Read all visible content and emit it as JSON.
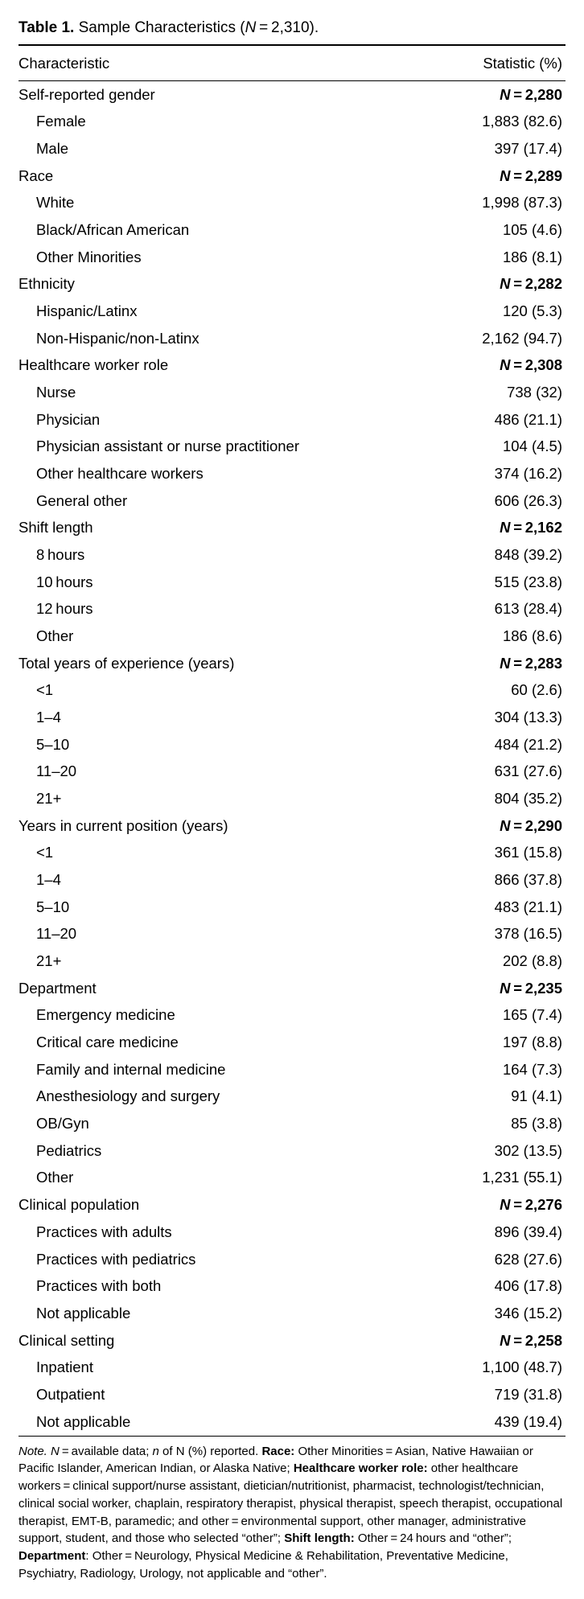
{
  "title_prefix": "Table 1.",
  "title_text": " Sample Characteristics (",
  "title_N": "N",
  "title_eq": " = 2,310).",
  "header_left": "Characteristic",
  "header_right": "Statistic (%)",
  "N_label": "N",
  "eq": " = ",
  "sections": [
    {
      "label": "Self-reported gender",
      "n": "2,280",
      "rows": [
        {
          "l": "Female",
          "v": "1,883 (82.6)"
        },
        {
          "l": "Male",
          "v": "397 (17.4)"
        }
      ]
    },
    {
      "label": "Race",
      "n": "2,289",
      "rows": [
        {
          "l": "White",
          "v": "1,998 (87.3)"
        },
        {
          "l": "Black/African American",
          "v": "105 (4.6)"
        },
        {
          "l": "Other Minorities",
          "v": "186 (8.1)"
        }
      ]
    },
    {
      "label": "Ethnicity",
      "n": "2,282",
      "rows": [
        {
          "l": "Hispanic/Latinx",
          "v": "120 (5.3)"
        },
        {
          "l": "Non-Hispanic/non-Latinx",
          "v": "2,162 (94.7)"
        }
      ]
    },
    {
      "label": "Healthcare worker role",
      "n": "2,308",
      "rows": [
        {
          "l": "Nurse",
          "v": "738 (32)"
        },
        {
          "l": "Physician",
          "v": "486 (21.1)"
        },
        {
          "l": "Physician assistant or nurse practitioner",
          "v": "104 (4.5)"
        },
        {
          "l": "Other healthcare workers",
          "v": "374 (16.2)"
        },
        {
          "l": "General other",
          "v": "606 (26.3)"
        }
      ]
    },
    {
      "label": "Shift length",
      "n": "2,162",
      "rows": [
        {
          "l": "8 hours",
          "v": "848 (39.2)"
        },
        {
          "l": "10 hours",
          "v": "515 (23.8)"
        },
        {
          "l": "12 hours",
          "v": "613 (28.4)"
        },
        {
          "l": "Other",
          "v": "186 (8.6)"
        }
      ]
    },
    {
      "label": "Total years of experience (years)",
      "n": "2,283",
      "rows": [
        {
          "l": "<1",
          "v": "60 (2.6)"
        },
        {
          "l": "1–4",
          "v": "304 (13.3)"
        },
        {
          "l": "5–10",
          "v": "484 (21.2)"
        },
        {
          "l": "11–20",
          "v": "631 (27.6)"
        },
        {
          "l": "21+",
          "v": "804 (35.2)"
        }
      ]
    },
    {
      "label": "Years in current position (years)",
      "n": "2,290",
      "rows": [
        {
          "l": "<1",
          "v": "361 (15.8)"
        },
        {
          "l": "1–4",
          "v": "866 (37.8)"
        },
        {
          "l": "5–10",
          "v": "483 (21.1)"
        },
        {
          "l": "11–20",
          "v": "378 (16.5)"
        },
        {
          "l": "21+",
          "v": "202 (8.8)"
        }
      ]
    },
    {
      "label": "Department",
      "n": "2,235",
      "rows": [
        {
          "l": "Emergency medicine",
          "v": "165 (7.4)"
        },
        {
          "l": "Critical care medicine",
          "v": "197 (8.8)"
        },
        {
          "l": "Family and internal medicine",
          "v": "164 (7.3)"
        },
        {
          "l": "Anesthesiology and surgery",
          "v": "91 (4.1)"
        },
        {
          "l": "OB/Gyn",
          "v": "85 (3.8)"
        },
        {
          "l": "Pediatrics",
          "v": "302 (13.5)"
        },
        {
          "l": "Other",
          "v": "1,231 (55.1)"
        }
      ]
    },
    {
      "label": "Clinical population",
      "n": "2,276",
      "rows": [
        {
          "l": "Practices with adults",
          "v": "896 (39.4)"
        },
        {
          "l": "Practices with pediatrics",
          "v": "628 (27.6)"
        },
        {
          "l": "Practices with both",
          "v": "406 (17.8)"
        },
        {
          "l": "Not applicable",
          "v": "346 (15.2)"
        }
      ]
    },
    {
      "label": "Clinical setting",
      "n": "2,258",
      "rows": [
        {
          "l": "Inpatient",
          "v": "1,100 (48.7)"
        },
        {
          "l": "Outpatient",
          "v": "719 (31.8)"
        },
        {
          "l": "Not applicable",
          "v": "439 (19.4)"
        }
      ]
    }
  ],
  "note_prefix": "Note. ",
  "note_N": "N",
  "note_body1": " = available data; ",
  "note_n2": "n",
  "note_body2": " of N (%) reported. ",
  "note_race_hd": "Race:",
  "note_race": " Other Minorities = Asian, Native Hawaiian or Pacific Islander, American Indian, or Alaska Native; ",
  "note_hcw_hd": "Healthcare worker role:",
  "note_hcw": " other healthcare workers = clinical support/nurse assistant, dietician/nutritionist, pharmacist, technologist/technician, clinical social worker, chaplain, respiratory therapist, physical therapist, speech therapist, occupational therapist, EMT-B, paramedic; and other = environmental support, other manager, administrative support, student, and those who selected “other”; ",
  "note_shift_hd": "Shift length:",
  "note_shift": " Other = 24 hours and “other”; ",
  "note_dept_hd": "Department",
  "note_dept": ": Other = Neurology, Physical Medicine & Rehabilitation, Preventative Medicine, Psychiatry, Radiology, Urology, not applicable and “other”."
}
